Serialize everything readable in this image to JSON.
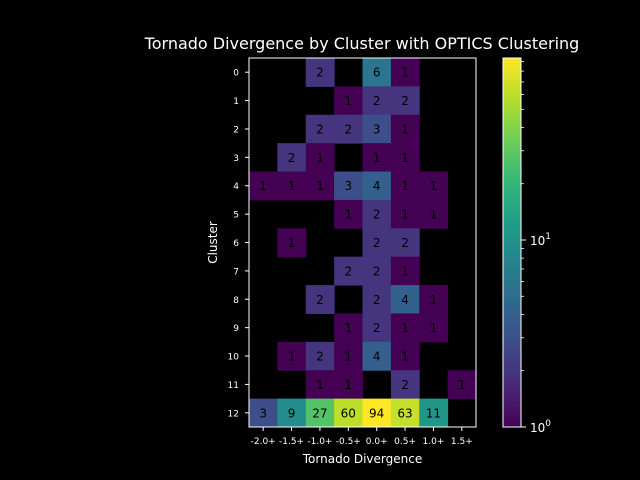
{
  "chart_data": {
    "type": "heatmap",
    "title": "Tornado Divergence by Cluster with OPTICS Clustering",
    "xlabel": "Tornado Divergence",
    "ylabel": "Cluster",
    "x_categories": [
      "-2.0+",
      "-1.5+",
      "-1.0+",
      "-0.5+",
      "0.0+",
      "0.5+",
      "1.0+",
      "1.5+"
    ],
    "y_categories": [
      "0",
      "1",
      "2",
      "3",
      "4",
      "5",
      "6",
      "7",
      "8",
      "9",
      "10",
      "11",
      "12"
    ],
    "values": [
      [
        null,
        null,
        2,
        null,
        6,
        1,
        null,
        null
      ],
      [
        null,
        null,
        null,
        1,
        2,
        2,
        null,
        null
      ],
      [
        null,
        null,
        2,
        2,
        3,
        1,
        null,
        null
      ],
      [
        null,
        2,
        1,
        null,
        1,
        1,
        null,
        null
      ],
      [
        1,
        1,
        1,
        3,
        4,
        1,
        1,
        null
      ],
      [
        null,
        null,
        null,
        1,
        2,
        1,
        1,
        null
      ],
      [
        null,
        1,
        null,
        null,
        2,
        2,
        null,
        null
      ],
      [
        null,
        null,
        null,
        2,
        2,
        1,
        null,
        null
      ],
      [
        null,
        null,
        2,
        null,
        2,
        4,
        1,
        null
      ],
      [
        null,
        null,
        null,
        1,
        2,
        1,
        1,
        null
      ],
      [
        null,
        1,
        2,
        1,
        4,
        1,
        null,
        null
      ],
      [
        null,
        null,
        1,
        1,
        null,
        2,
        null,
        1
      ],
      [
        3,
        9,
        27,
        60,
        94,
        63,
        11,
        null
      ]
    ],
    "colorscale": "viridis",
    "colorbar": {
      "scale": "log",
      "range": [
        1,
        94
      ],
      "tick_labels": [
        "10^0",
        "10^1"
      ],
      "tick_values": [
        1,
        10
      ]
    },
    "background": "#000000",
    "text_color": "#ffffff",
    "grid": false
  }
}
